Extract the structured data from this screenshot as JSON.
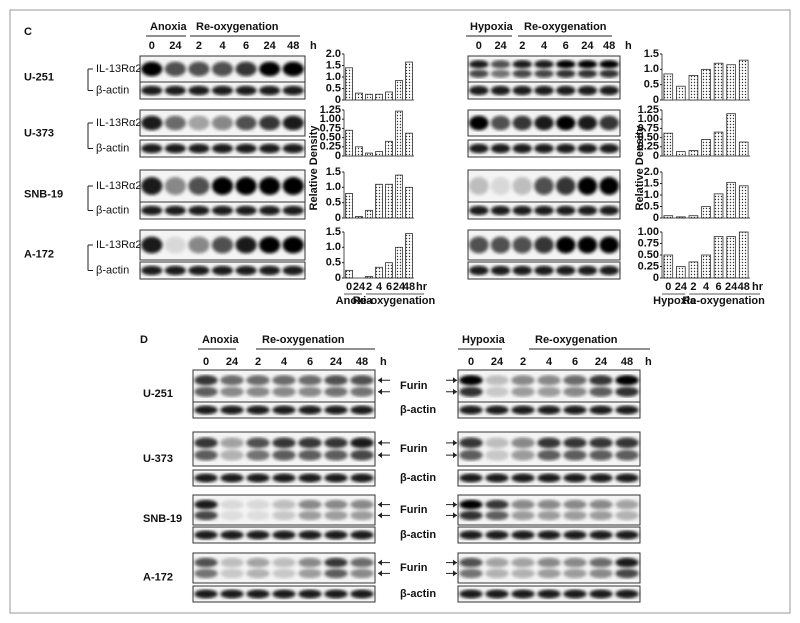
{
  "panel_c": {
    "label": "C",
    "left_header": {
      "condition": "Anoxia",
      "reox": "Re-oxygenation",
      "lanes": [
        "0",
        "24",
        "2",
        "4",
        "6",
        "24",
        "48"
      ],
      "unit": "h"
    },
    "right_header": {
      "condition": "Hypoxia",
      "reox": "Re-oxygenation",
      "lanes": [
        "0",
        "24",
        "2",
        "4",
        "6",
        "24",
        "48"
      ],
      "unit": "h"
    },
    "cell_lines": [
      "U-251",
      "U-373",
      "SNB-19",
      "A-172"
    ],
    "protein": "IL-13Rα2",
    "control": "β-actin",
    "ylabel": "Relative Density"
  },
  "panel_d": {
    "label": "D",
    "left_header": {
      "condition": "Anoxia",
      "reox": "Re-oxygenation",
      "lanes": [
        "0",
        "24",
        "2",
        "4",
        "6",
        "24",
        "48"
      ],
      "unit": "h"
    },
    "right_header": {
      "condition": "Hypoxia",
      "reox": "Re-oxygenation",
      "lanes": [
        "0",
        "24",
        "2",
        "4",
        "6",
        "24",
        "48"
      ],
      "unit": "h"
    },
    "cell_lines": [
      "U-251",
      "U-373",
      "SNB-19",
      "A-172"
    ],
    "protein": "Furin",
    "control": "β-actin"
  },
  "chart_data": [
    {
      "type": "bar",
      "color": "#333",
      "values": [
        1.4,
        0.3,
        0.25,
        0.25,
        0.35,
        0.85,
        1.65
      ],
      "ylim": [
        0,
        2
      ],
      "yticks": [
        0,
        0.5,
        {
          "value": 1,
          "label": "1.0"
        },
        1.5,
        {
          "value": 2,
          "label": "2.0"
        }
      ]
    },
    {
      "type": "bar",
      "color": "#333",
      "values": [
        0.7,
        0.25,
        0.08,
        0.12,
        0.4,
        1.22,
        0.62
      ],
      "ylim": [
        0,
        1.25
      ],
      "yticks": [
        0,
        0.25,
        {
          "value": 0.5,
          "label": "0.50"
        },
        0.75,
        {
          "value": 1,
          "label": "1.00"
        },
        1.25
      ]
    },
    {
      "type": "bar",
      "color": "#333",
      "values": [
        0.8,
        0.05,
        0.25,
        1.1,
        1.1,
        1.4,
        1.0
      ],
      "ylim": [
        0,
        1.5
      ],
      "yticks": [
        0,
        0.5,
        {
          "value": 1,
          "label": "1.0"
        },
        1.5
      ]
    },
    {
      "type": "bar",
      "color": "#333",
      "values": [
        0.25,
        0,
        0.05,
        0.35,
        0.5,
        1.0,
        1.45
      ],
      "ylim": [
        0,
        1.5
      ],
      "yticks": [
        0,
        0.5,
        {
          "value": 1,
          "label": "1.0"
        },
        1.5
      ],
      "categories": [
        "0",
        "24",
        "2",
        "4",
        "6",
        "24",
        "48"
      ],
      "x_unit": "hr",
      "groups": [
        "Anoxia",
        "Re-oxygenation"
      ]
    },
    {
      "type": "bar",
      "color": "#333",
      "values": [
        0.85,
        0.45,
        0.8,
        1.0,
        1.2,
        1.15,
        1.3
      ],
      "ylim": [
        0,
        1.5
      ],
      "yticks": [
        0,
        0.5,
        {
          "value": 1,
          "label": "1.0"
        },
        1.5
      ]
    },
    {
      "type": "bar",
      "color": "#333",
      "values": [
        0.62,
        0.12,
        0.15,
        0.45,
        0.65,
        1.15,
        0.38
      ],
      "ylim": [
        0,
        1.25
      ],
      "yticks": [
        0,
        0.25,
        {
          "value": 0.5,
          "label": "0.50"
        },
        0.75,
        {
          "value": 1,
          "label": "1.00"
        },
        1.25
      ]
    },
    {
      "type": "bar",
      "color": "#333",
      "values": [
        0.1,
        0.05,
        0.1,
        0.5,
        1.05,
        1.55,
        1.4
      ],
      "ylim": [
        0,
        2
      ],
      "yticks": [
        0,
        0.5,
        {
          "value": 1,
          "label": "1.0"
        },
        1.5,
        {
          "value": 2,
          "label": "2.0"
        }
      ]
    },
    {
      "type": "bar",
      "color": "#333",
      "values": [
        0.5,
        0.25,
        0.35,
        0.5,
        0.9,
        0.9,
        1.0
      ],
      "ylim": [
        0,
        1
      ],
      "yticks": [
        0,
        0.25,
        {
          "value": 0.5,
          "label": "0.50"
        },
        0.75,
        {
          "value": 1,
          "label": "1.00"
        }
      ],
      "categories": [
        "0",
        "24",
        "2",
        "4",
        "6",
        "24",
        "48"
      ],
      "x_unit": "hr",
      "groups": [
        "Hypoxia",
        "Re-oxygenation"
      ]
    }
  ]
}
